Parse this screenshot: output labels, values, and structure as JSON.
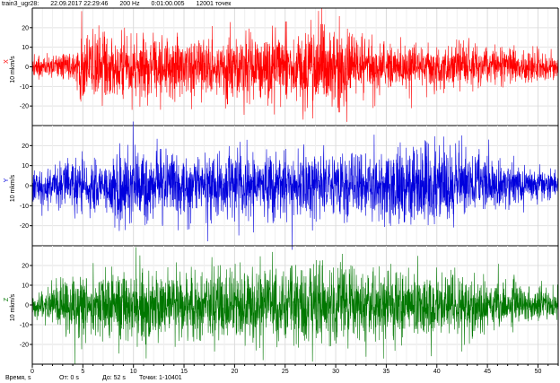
{
  "header": {
    "file": "train3_ugr28:",
    "date": "22.09.2017 22:29:46",
    "rate": "200 Hz",
    "duration": "0:01:00.005",
    "points": "12001 точек"
  },
  "footer": {
    "axis_label": "Время, s",
    "from": "От: 0 s",
    "to": "До: 52 s",
    "range": "Точки: 1-10401"
  },
  "chart_data": {
    "type": "line",
    "x": {
      "min": 0,
      "max": 52,
      "ticks": [
        0,
        5,
        10,
        15,
        20,
        25,
        30,
        35,
        40,
        45,
        50
      ]
    },
    "grid": true,
    "panels": [
      {
        "name": "X",
        "ylabel": "10 mkm/s",
        "color": "#ff0000",
        "ylim": [
          -30,
          30
        ],
        "yticks": [
          -20,
          -10,
          0,
          10,
          20
        ],
        "amplitude_envelope": [
          {
            "t": 0,
            "a": 6
          },
          {
            "t": 4,
            "a": 8
          },
          {
            "t": 5,
            "a": 22
          },
          {
            "t": 8,
            "a": 20
          },
          {
            "t": 15,
            "a": 18
          },
          {
            "t": 20,
            "a": 19
          },
          {
            "t": 27,
            "a": 24
          },
          {
            "t": 30,
            "a": 26
          },
          {
            "t": 35,
            "a": 14
          },
          {
            "t": 40,
            "a": 13
          },
          {
            "t": 45,
            "a": 12
          },
          {
            "t": 50,
            "a": 9
          },
          {
            "t": 52,
            "a": 8
          }
        ]
      },
      {
        "name": "Y",
        "ylabel": "10 mkm/s",
        "color": "#0000dd",
        "ylim": [
          -30,
          30
        ],
        "yticks": [
          -20,
          -10,
          0,
          10,
          20
        ],
        "amplitude_envelope": [
          {
            "t": 0,
            "a": 8
          },
          {
            "t": 5,
            "a": 16
          },
          {
            "t": 10,
            "a": 22
          },
          {
            "t": 15,
            "a": 18
          },
          {
            "t": 20,
            "a": 19
          },
          {
            "t": 25,
            "a": 20
          },
          {
            "t": 30,
            "a": 18
          },
          {
            "t": 35,
            "a": 20
          },
          {
            "t": 40,
            "a": 28
          },
          {
            "t": 42,
            "a": 25
          },
          {
            "t": 45,
            "a": 16
          },
          {
            "t": 50,
            "a": 10
          },
          {
            "t": 52,
            "a": 8
          }
        ]
      },
      {
        "name": "Z",
        "ylabel": "10 mkm/s",
        "color": "#007700",
        "ylim": [
          -30,
          30
        ],
        "yticks": [
          -20,
          -10,
          0,
          10,
          20
        ],
        "amplitude_envelope": [
          {
            "t": 0,
            "a": 6
          },
          {
            "t": 5,
            "a": 20
          },
          {
            "t": 10,
            "a": 22
          },
          {
            "t": 15,
            "a": 20
          },
          {
            "t": 20,
            "a": 21
          },
          {
            "t": 25,
            "a": 23
          },
          {
            "t": 30,
            "a": 24
          },
          {
            "t": 35,
            "a": 20
          },
          {
            "t": 40,
            "a": 19
          },
          {
            "t": 45,
            "a": 16
          },
          {
            "t": 50,
            "a": 10
          },
          {
            "t": 52,
            "a": 9
          }
        ]
      }
    ]
  }
}
